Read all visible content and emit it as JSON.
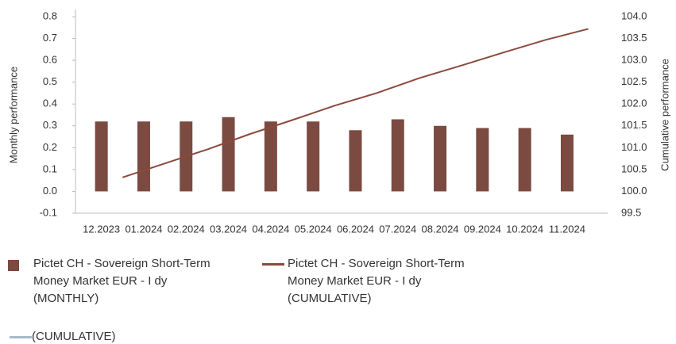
{
  "chart_data": {
    "type": "bar+line",
    "categories": [
      "12.2023",
      "01.2024",
      "02.2024",
      "03.2024",
      "04.2024",
      "05.2024",
      "06.2024",
      "07.2024",
      "08.2024",
      "09.2024",
      "10.2024",
      "11.2024"
    ],
    "series": [
      {
        "name": "Pictet CH - Sovereign Short-Term Money Market EUR - I dy (MONTHLY)",
        "type": "bar",
        "color": "#7b4a40",
        "values": [
          0.32,
          0.32,
          0.32,
          0.34,
          0.32,
          0.32,
          0.28,
          0.33,
          0.3,
          0.29,
          0.29,
          0.26
        ]
      },
      {
        "name": "Pictet CH - Sovereign Short-Term Money Market EUR - I dy (CUMULATIVE)",
        "type": "line",
        "axis": "y2",
        "color": "#8b4a3d",
        "values": [
          100.32,
          100.64,
          100.96,
          101.31,
          101.63,
          101.96,
          102.25,
          102.59,
          102.88,
          103.18,
          103.47,
          103.72
        ]
      },
      {
        "name": "(CUMULATIVE)",
        "type": "line",
        "axis": "y2",
        "color": "#a9b9c9",
        "values": [
          null,
          null,
          null,
          null,
          null,
          null,
          null,
          null,
          null,
          null,
          null,
          null
        ]
      }
    ],
    "ylabel": "Monthly performance",
    "y2label": "Cumulative performance",
    "ylim": [
      -0.1,
      0.8
    ],
    "yticks": [
      -0.1,
      {
        "value": 0,
        "label": "0.0"
      },
      0.1,
      0.2,
      0.3,
      0.4,
      0.5,
      0.6,
      0.7,
      0.8
    ],
    "y2lim": [
      99.5,
      104
    ],
    "y2ticks": [
      99.5,
      {
        "value": 100,
        "label": "100.0"
      },
      100.5,
      {
        "value": 101,
        "label": "101.0"
      },
      101.5,
      {
        "value": 102,
        "label": "102.0"
      },
      102.5,
      {
        "value": 103,
        "label": "103.0"
      },
      103.5,
      {
        "value": 104,
        "label": "104.0"
      }
    ],
    "grid": false
  }
}
